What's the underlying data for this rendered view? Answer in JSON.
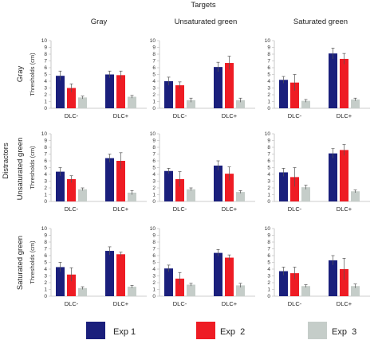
{
  "figure": {
    "top_title": "Targets",
    "side_title": "Distractors",
    "columns": [
      "Gray",
      "Unsaturated green",
      "Saturated green"
    ],
    "rows": [
      "Gray",
      "Unsaturated green",
      "Saturated green"
    ]
  },
  "legend": [
    {
      "label": "Exp 1",
      "color": "#1a1f7c"
    },
    {
      "label": "Exp  2",
      "color": "#ee1c24"
    },
    {
      "label": "Exp  3",
      "color": "#c5cdc9"
    }
  ],
  "chart_data": [
    {
      "type": "bar",
      "row": "Gray",
      "column": "Gray",
      "ylabel": "Thresholds (cm)",
      "ylim": [
        0,
        10
      ],
      "yticks": [
        0,
        1,
        2,
        3,
        4,
        5,
        6,
        7,
        8,
        9,
        10
      ],
      "categories": [
        "DLC-",
        "DLC+"
      ],
      "series": [
        {
          "name": "Exp 1",
          "values": [
            4.8,
            5.0
          ],
          "errors": [
            0.7,
            0.5
          ]
        },
        {
          "name": "Exp  2",
          "values": [
            3.0,
            4.9
          ],
          "errors": [
            0.6,
            0.6
          ]
        },
        {
          "name": "Exp  3",
          "values": [
            1.6,
            1.7
          ],
          "errors": [
            0.2,
            0.2
          ]
        }
      ]
    },
    {
      "type": "bar",
      "row": "Gray",
      "column": "Unsaturated green",
      "ylabel": "",
      "ylim": [
        0,
        10
      ],
      "yticks": [
        0,
        1,
        2,
        3,
        4,
        5,
        6,
        7,
        8,
        9,
        10
      ],
      "categories": [
        "DLC-",
        "DLC+"
      ],
      "series": [
        {
          "name": "Exp 1",
          "values": [
            4.0,
            6.1
          ],
          "errors": [
            0.6,
            0.7
          ]
        },
        {
          "name": "Exp  2",
          "values": [
            3.4,
            6.7
          ],
          "errors": [
            0.5,
            1.0
          ]
        },
        {
          "name": "Exp  3",
          "values": [
            1.2,
            1.2
          ],
          "errors": [
            0.3,
            0.3
          ]
        }
      ]
    },
    {
      "type": "bar",
      "row": "Gray",
      "column": "Saturated green",
      "ylabel": "",
      "ylim": [
        0,
        10
      ],
      "yticks": [
        0,
        1,
        2,
        3,
        4,
        5,
        6,
        7,
        8,
        9,
        10
      ],
      "categories": [
        "DLC-",
        "DLC+"
      ],
      "series": [
        {
          "name": "Exp 1",
          "values": [
            4.2,
            8.1
          ],
          "errors": [
            0.5,
            0.8
          ]
        },
        {
          "name": "Exp  2",
          "values": [
            3.8,
            7.3
          ],
          "errors": [
            1.2,
            0.8
          ]
        },
        {
          "name": "Exp  3",
          "values": [
            1.1,
            1.3
          ],
          "errors": [
            0.2,
            0.2
          ]
        }
      ]
    },
    {
      "type": "bar",
      "row": "Unsaturated green",
      "column": "Gray",
      "ylabel": "Thresholds (cm)",
      "ylim": [
        0,
        10
      ],
      "yticks": [
        0,
        1,
        2,
        3,
        4,
        5,
        6,
        7,
        8,
        9,
        10
      ],
      "categories": [
        "DLC-",
        "DLC+"
      ],
      "series": [
        {
          "name": "Exp 1",
          "values": [
            4.4,
            6.4
          ],
          "errors": [
            0.6,
            0.6
          ]
        },
        {
          "name": "Exp  2",
          "values": [
            3.3,
            6.0
          ],
          "errors": [
            0.5,
            1.2
          ]
        },
        {
          "name": "Exp  3",
          "values": [
            1.8,
            1.3
          ],
          "errors": [
            0.2,
            0.3
          ]
        }
      ]
    },
    {
      "type": "bar",
      "row": "Unsaturated green",
      "column": "Unsaturated green",
      "ylabel": "",
      "ylim": [
        0,
        10
      ],
      "yticks": [
        0,
        1,
        2,
        3,
        4,
        5,
        6,
        7,
        8,
        9,
        10
      ],
      "categories": [
        "DLC-",
        "DLC+"
      ],
      "series": [
        {
          "name": "Exp 1",
          "values": [
            4.5,
            5.3
          ],
          "errors": [
            0.4,
            0.7
          ]
        },
        {
          "name": "Exp  2",
          "values": [
            3.3,
            4.1
          ],
          "errors": [
            1.1,
            1.0
          ]
        },
        {
          "name": "Exp  3",
          "values": [
            1.8,
            1.4
          ],
          "errors": [
            0.2,
            0.2
          ]
        }
      ]
    },
    {
      "type": "bar",
      "row": "Unsaturated green",
      "column": "Saturated green",
      "ylabel": "",
      "ylim": [
        0,
        10
      ],
      "yticks": [
        0,
        1,
        2,
        3,
        4,
        5,
        6,
        7,
        8,
        9,
        10
      ],
      "categories": [
        "DLC-",
        "DLC+"
      ],
      "series": [
        {
          "name": "Exp 1",
          "values": [
            4.3,
            7.1
          ],
          "errors": [
            0.6,
            0.7
          ]
        },
        {
          "name": "Exp  2",
          "values": [
            3.6,
            7.6
          ],
          "errors": [
            1.4,
            0.8
          ]
        },
        {
          "name": "Exp  3",
          "values": [
            2.1,
            1.5
          ],
          "errors": [
            0.3,
            0.2
          ]
        }
      ]
    },
    {
      "type": "bar",
      "row": "Saturated green",
      "column": "Gray",
      "ylabel": "Thresholds (cm)",
      "ylim": [
        0,
        10
      ],
      "yticks": [
        0,
        1,
        2,
        3,
        4,
        5,
        6,
        7,
        8,
        9,
        10
      ],
      "categories": [
        "DLC-",
        "DLC+"
      ],
      "series": [
        {
          "name": "Exp 1",
          "values": [
            4.3,
            6.7
          ],
          "errors": [
            0.7,
            0.6
          ]
        },
        {
          "name": "Exp  2",
          "values": [
            3.2,
            6.2
          ],
          "errors": [
            1.0,
            0.3
          ]
        },
        {
          "name": "Exp  3",
          "values": [
            1.2,
            1.4
          ],
          "errors": [
            0.2,
            0.2
          ]
        }
      ]
    },
    {
      "type": "bar",
      "row": "Saturated green",
      "column": "Unsaturated green",
      "ylabel": "",
      "ylim": [
        0,
        10
      ],
      "yticks": [
        0,
        1,
        2,
        3,
        4,
        5,
        6,
        7,
        8,
        9,
        10
      ],
      "categories": [
        "DLC-",
        "DLC+"
      ],
      "series": [
        {
          "name": "Exp 1",
          "values": [
            4.1,
            6.4
          ],
          "errors": [
            0.5,
            0.5
          ]
        },
        {
          "name": "Exp  2",
          "values": [
            2.6,
            5.7
          ],
          "errors": [
            0.9,
            0.4
          ]
        },
        {
          "name": "Exp  3",
          "values": [
            1.7,
            1.6
          ],
          "errors": [
            0.2,
            0.3
          ]
        }
      ]
    },
    {
      "type": "bar",
      "row": "Saturated green",
      "column": "Saturated green",
      "ylabel": "",
      "ylim": [
        0,
        10
      ],
      "yticks": [
        0,
        1,
        2,
        3,
        4,
        5,
        6,
        7,
        8,
        9,
        10
      ],
      "categories": [
        "DLC-",
        "DLC+"
      ],
      "series": [
        {
          "name": "Exp 1",
          "values": [
            3.7,
            5.3
          ],
          "errors": [
            0.6,
            0.7
          ]
        },
        {
          "name": "Exp  2",
          "values": [
            3.4,
            4.0
          ],
          "errors": [
            0.9,
            1.6
          ]
        },
        {
          "name": "Exp  3",
          "values": [
            1.5,
            1.5
          ],
          "errors": [
            0.2,
            0.3
          ]
        }
      ]
    }
  ]
}
